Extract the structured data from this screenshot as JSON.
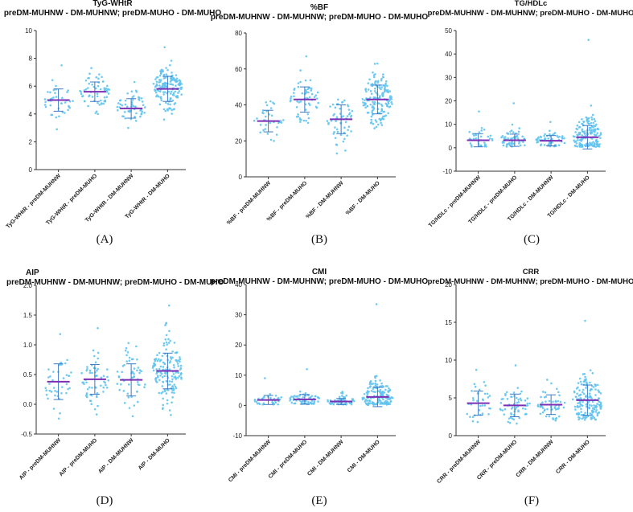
{
  "colors": {
    "points": "#62c4f0",
    "mean": "#7b2fb5",
    "error": "#3a78c4",
    "axis": "#333333"
  },
  "chart_data": [
    {
      "id": "A",
      "type": "scatter",
      "title": "TyG-WHtR",
      "subtitle": "preDM-MUHNW - DM-MUHNW; preDM-MUHO - DM-MUHO",
      "panel_label": "(A)",
      "ylim": [
        0,
        10
      ],
      "ticks": [
        "0",
        "2",
        "4",
        "6",
        "8",
        "10"
      ],
      "tick_values": [
        0,
        2,
        4,
        6,
        8,
        10
      ],
      "categories": [
        "TyG-WHtR - preDM-MUHNW",
        "TyG-WHtR - preDM-MUHO",
        "TyG-WHtR - DM-MUHNW",
        "TyG-WHtR - DM-MUHO"
      ],
      "means": [
        5.0,
        5.6,
        4.4,
        5.8
      ],
      "sd": [
        0.8,
        0.7,
        0.7,
        0.9
      ],
      "min": [
        2.9,
        4.0,
        3.0,
        3.6
      ],
      "max": [
        7.5,
        7.3,
        6.3,
        8.8
      ],
      "n": [
        40,
        60,
        55,
        160
      ]
    },
    {
      "id": "B",
      "type": "scatter",
      "title": "%BF",
      "subtitle": "preDM-MUHNW - DM-MUHNW; preDM-MUHO - DM-MUHO",
      "panel_label": "(B)",
      "ylim": [
        0,
        80
      ],
      "ticks": [
        "0",
        "20",
        "40",
        "60",
        "80"
      ],
      "tick_values": [
        0,
        20,
        40,
        60,
        80
      ],
      "categories": [
        "%BF - preDM-MUHNW",
        "%BF - preDM-MUHO",
        "%BF - DM-MUHNW",
        "%BF - DM-MUHO"
      ],
      "means": [
        31,
        43,
        32,
        43
      ],
      "sd": [
        6,
        7,
        8,
        8
      ],
      "min": [
        20,
        30,
        13,
        27
      ],
      "max": [
        42,
        67,
        43,
        63
      ],
      "n": [
        35,
        60,
        55,
        160
      ]
    },
    {
      "id": "C",
      "type": "scatter",
      "title": "TG/HDLc",
      "subtitle": "preDM-MUHNW - DM-MUHNW; preDM-MUHO - DM-MUHO",
      "panel_label": "(C)",
      "ylim": [
        -10,
        50
      ],
      "ticks": [
        "-10",
        "0",
        "10",
        "20",
        "30",
        "40",
        "50"
      ],
      "tick_values": [
        -10,
        0,
        10,
        20,
        30,
        40,
        50
      ],
      "categories": [
        "TG/HDLc - preDM-MUHNW",
        "TG/HDLc - preDM-MUHO",
        "TG/HDLc - DM-MUHNW",
        "TG/HDLc - DM-MUHO"
      ],
      "means": [
        3.2,
        3.2,
        3.0,
        4.5
      ],
      "sd": [
        2.8,
        2.6,
        2.2,
        5.0
      ],
      "min": [
        0.5,
        0.5,
        0.6,
        0.4
      ],
      "max": [
        15.5,
        19,
        11,
        46
      ],
      "n": [
        35,
        60,
        55,
        160
      ]
    },
    {
      "id": "D",
      "type": "scatter",
      "title": "AIP",
      "subtitle": "preDM-MUHNW - DM-MUHNW; preDM-MUHO - DM-MUHO",
      "panel_label": "(D)",
      "ylim": [
        -0.5,
        2.0
      ],
      "ticks": [
        "-0.5",
        "0.0",
        "0.5",
        "1.0",
        "1.5",
        "2.0"
      ],
      "tick_values": [
        -0.5,
        0.0,
        0.5,
        1.0,
        1.5,
        2.0
      ],
      "categories": [
        "AIP - preDM-MUHNW",
        "AIP - preDM-MUHO",
        "AIP - DM-MUHNW",
        "AIP - DM-MUHO"
      ],
      "means": [
        0.38,
        0.42,
        0.41,
        0.56
      ],
      "sd": [
        0.3,
        0.25,
        0.27,
        0.3
      ],
      "min": [
        -0.24,
        -0.17,
        -0.2,
        -0.18
      ],
      "max": [
        1.18,
        1.28,
        1.03,
        1.66
      ],
      "n": [
        40,
        60,
        55,
        160
      ]
    },
    {
      "id": "E",
      "type": "scatter",
      "title": "CMI",
      "subtitle": "preDM-MUHNW - DM-MUHNW; preDM-MUHO - DM-MUHO",
      "panel_label": "(E)",
      "ylim": [
        -10,
        40
      ],
      "ticks": [
        "-10",
        "0",
        "10",
        "20",
        "30",
        "40"
      ],
      "tick_values": [
        -10,
        0,
        10,
        20,
        30,
        40
      ],
      "categories": [
        "CMI - preDM-MUHNW",
        "CMI - preDM-MUHO",
        "CMI - DM-MUHNW",
        "CMI - DM-MUHO"
      ],
      "means": [
        1.8,
        2.0,
        1.3,
        2.8
      ],
      "sd": [
        1.5,
        1.6,
        1.0,
        3.2
      ],
      "min": [
        0.3,
        0.4,
        0.3,
        0.2
      ],
      "max": [
        9,
        12,
        4.5,
        33.5
      ],
      "n": [
        35,
        60,
        55,
        160
      ]
    },
    {
      "id": "F",
      "type": "scatter",
      "title": "CRR",
      "subtitle": "preDM-MUHNW - DM-MUHNW; preDM-MUHO - DM-MUHO",
      "panel_label": "(F)",
      "ylim": [
        0,
        20
      ],
      "ticks": [
        "0",
        "5",
        "10",
        "15",
        "20"
      ],
      "tick_values": [
        0,
        5,
        10,
        15,
        20
      ],
      "categories": [
        "CRR - preDM-MUHNW",
        "CRR - preDM-MUHO",
        "CRR - DM-MUHNW",
        "CRR - DM-MUHO"
      ],
      "means": [
        4.3,
        4.0,
        4.1,
        4.7
      ],
      "sd": [
        1.6,
        1.5,
        1.3,
        2.0
      ],
      "min": [
        1.8,
        1.6,
        2.0,
        2.1
      ],
      "max": [
        8.7,
        9.3,
        7.4,
        15.2
      ],
      "n": [
        35,
        60,
        55,
        160
      ]
    }
  ]
}
